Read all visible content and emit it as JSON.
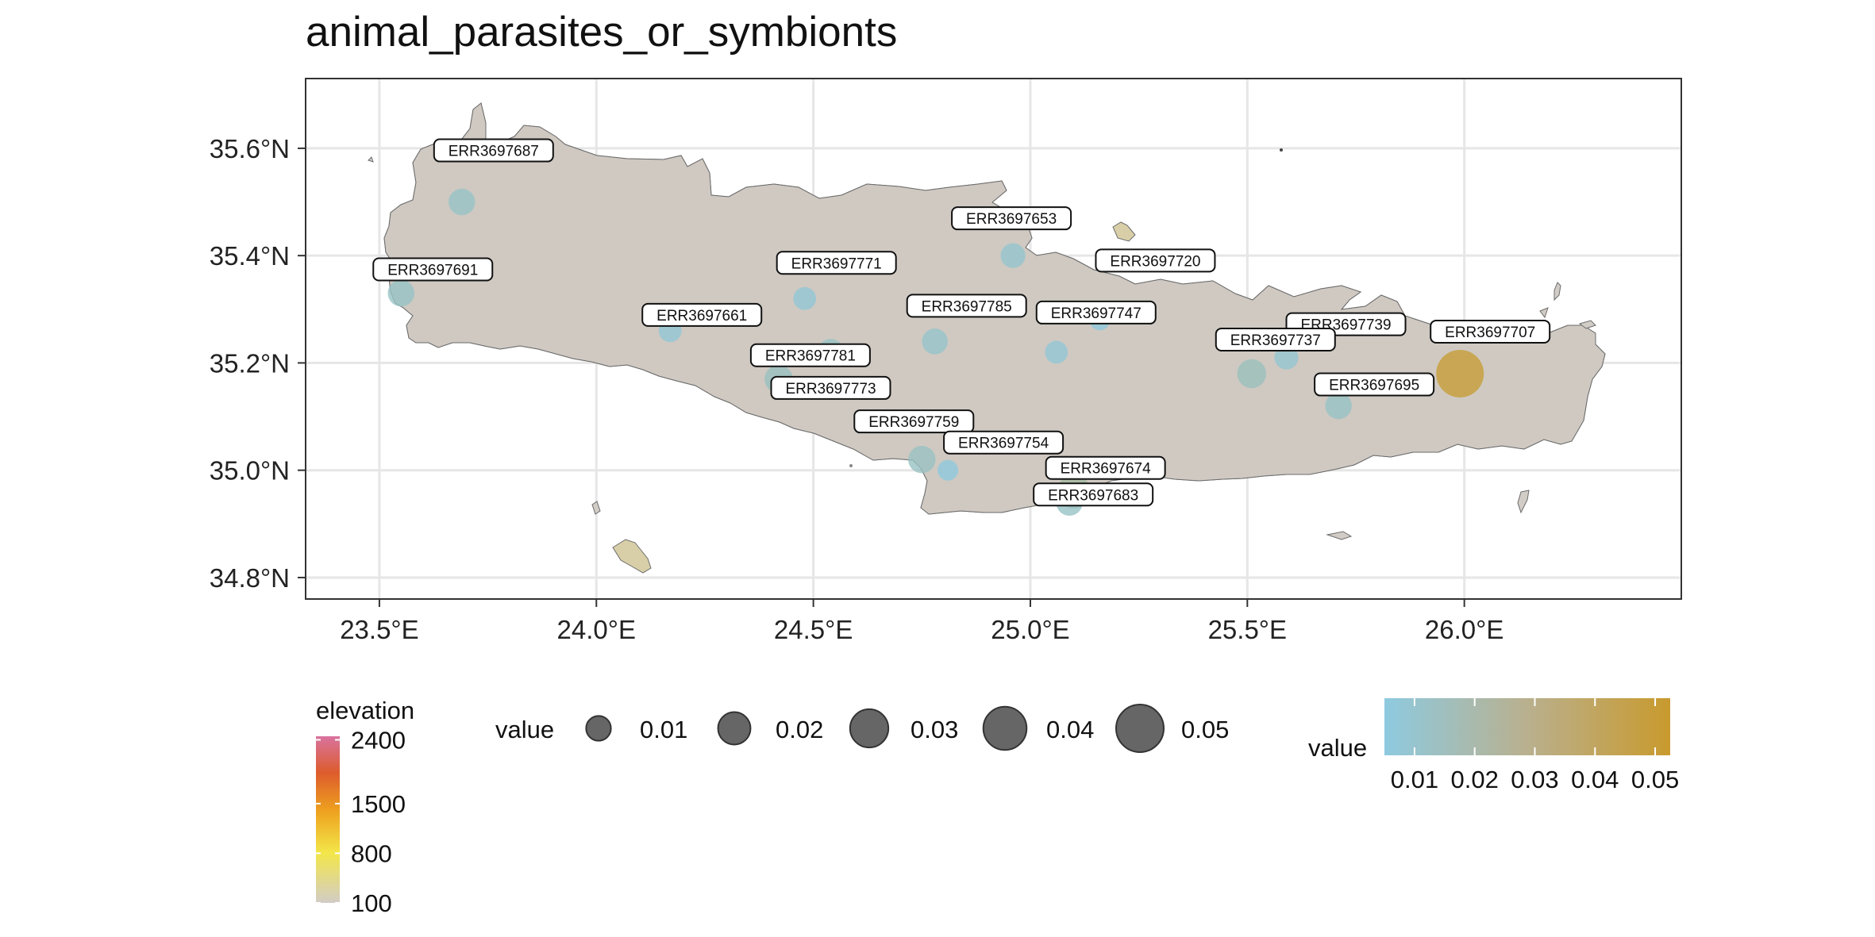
{
  "title": "animal_parasites_or_symbionts",
  "map": {
    "lon_range": [
      23.33,
      26.5
    ],
    "lat_range": [
      34.76,
      35.73
    ],
    "x_ticks": [
      {
        "value": 23.5,
        "label": "23.5°E"
      },
      {
        "value": 24.0,
        "label": "24.0°E"
      },
      {
        "value": 24.5,
        "label": "24.5°E"
      },
      {
        "value": 25.0,
        "label": "25.0°E"
      },
      {
        "value": 25.5,
        "label": "25.5°E"
      },
      {
        "value": 26.0,
        "label": "26.0°E"
      }
    ],
    "y_ticks": [
      {
        "value": 35.6,
        "label": "35.6°N"
      },
      {
        "value": 35.4,
        "label": "35.4°N"
      },
      {
        "value": 35.2,
        "label": "35.2°N"
      },
      {
        "value": 35.0,
        "label": "35.0°N"
      },
      {
        "value": 34.8,
        "label": "34.8°N"
      }
    ],
    "grid": true,
    "colors": {
      "land_base": "#cfc9c2",
      "low_color": "#8ecae0",
      "high_color": "#c99a2e",
      "grid": "#e6e6e6"
    }
  },
  "chart_data": {
    "type": "scatter",
    "samples": [
      {
        "id": "ERR3697687",
        "lon": 23.69,
        "lat": 35.5,
        "value": 0.012
      },
      {
        "id": "ERR3697691",
        "lon": 23.55,
        "lat": 35.33,
        "value": 0.012
      },
      {
        "id": "ERR3697661",
        "lon": 24.17,
        "lat": 35.26,
        "value": 0.008
      },
      {
        "id": "ERR3697771",
        "lon": 24.48,
        "lat": 35.32,
        "value": 0.008
      },
      {
        "id": "ERR3697773",
        "lon": 24.54,
        "lat": 35.22,
        "value": 0.012
      },
      {
        "id": "ERR3697781",
        "lon": 24.42,
        "lat": 35.17,
        "value": 0.014
      },
      {
        "id": "ERR3697785",
        "lon": 24.78,
        "lat": 35.24,
        "value": 0.011
      },
      {
        "id": "ERR3697653",
        "lon": 24.96,
        "lat": 35.4,
        "value": 0.01
      },
      {
        "id": "ERR3697720",
        "lon": 25.16,
        "lat": 35.28,
        "value": 0.006
      },
      {
        "id": "ERR3697747",
        "lon": 25.06,
        "lat": 35.22,
        "value": 0.008
      },
      {
        "id": "ERR3697739",
        "lon": 25.59,
        "lat": 35.21,
        "value": 0.009
      },
      {
        "id": "ERR3697737",
        "lon": 25.51,
        "lat": 35.18,
        "value": 0.015
      },
      {
        "id": "ERR3697695",
        "lon": 25.71,
        "lat": 35.12,
        "value": 0.012
      },
      {
        "id": "ERR3697707",
        "lon": 25.99,
        "lat": 35.18,
        "value": 0.05
      },
      {
        "id": "ERR3697759",
        "lon": 24.75,
        "lat": 35.02,
        "value": 0.013
      },
      {
        "id": "ERR3697754",
        "lon": 24.81,
        "lat": 35.0,
        "value": 0.006
      },
      {
        "id": "ERR3697674",
        "lon": 25.1,
        "lat": 34.96,
        "value": 0.022
      },
      {
        "id": "ERR3697683",
        "lon": 25.09,
        "lat": 34.94,
        "value": 0.012
      }
    ],
    "label_texts": {
      "ERR3697759": "ERR3697759",
      "ERR3697674": "ERR3697674"
    }
  },
  "legends": {
    "elevation": {
      "title": "elevation",
      "breaks": [
        {
          "value": 2400,
          "label": "2400"
        },
        {
          "value": 1500,
          "label": "1500"
        },
        {
          "value": 800,
          "label": "800"
        },
        {
          "value": 100,
          "label": "100"
        }
      ],
      "range": [
        100,
        2450
      ]
    },
    "size": {
      "title": "value",
      "entries": [
        {
          "value": 0.01,
          "label": "0.01"
        },
        {
          "value": 0.02,
          "label": "0.02"
        },
        {
          "value": 0.03,
          "label": "0.03"
        },
        {
          "value": 0.04,
          "label": "0.04"
        },
        {
          "value": 0.05,
          "label": "0.05"
        }
      ]
    },
    "color": {
      "title": "value",
      "breaks": [
        {
          "value": 0.01,
          "label": "0.01"
        },
        {
          "value": 0.02,
          "label": "0.02"
        },
        {
          "value": 0.03,
          "label": "0.03"
        },
        {
          "value": 0.04,
          "label": "0.04"
        },
        {
          "value": 0.05,
          "label": "0.05"
        }
      ],
      "range": [
        0.005,
        0.0525
      ]
    }
  }
}
